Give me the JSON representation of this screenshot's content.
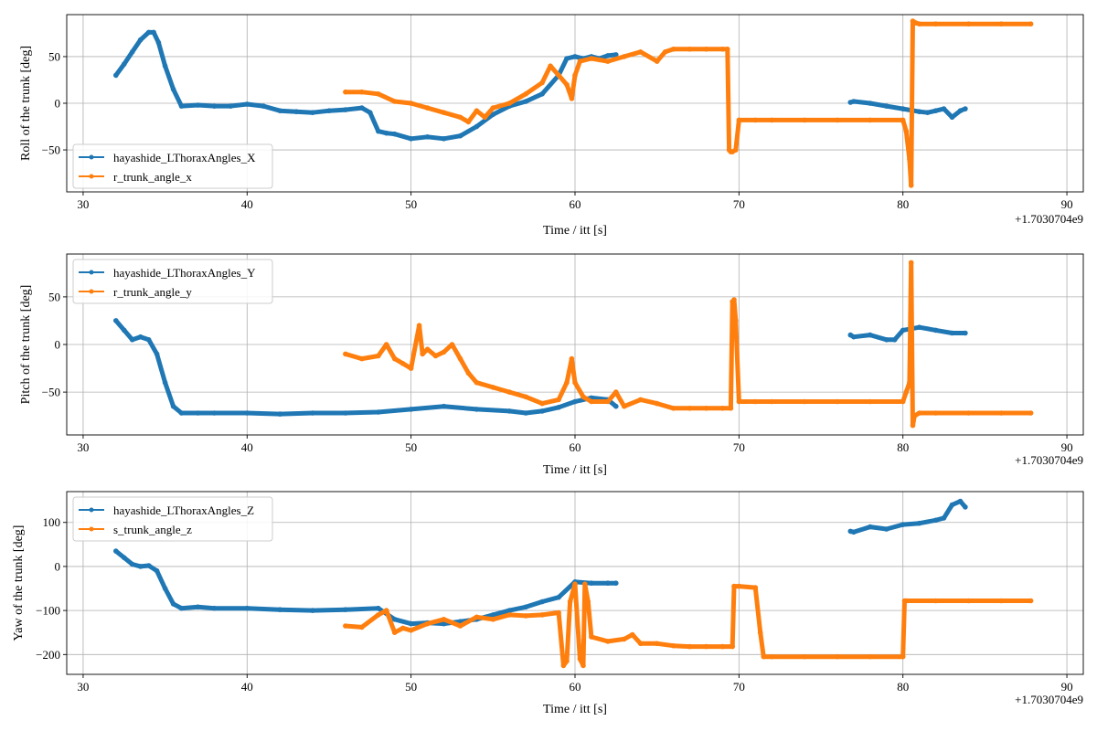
{
  "chart_data": [
    {
      "type": "line",
      "xlabel": "Time / itt [s]",
      "ylabel": "Roll of the trunk [deg]",
      "x_offset_label": "+1.7030704e9",
      "xlim": [
        29,
        91
      ],
      "ylim": [
        -95,
        95
      ],
      "xticks": [
        30,
        40,
        50,
        60,
        70,
        80,
        90
      ],
      "yticks": [
        -50,
        0,
        50
      ],
      "grid": true,
      "legend_position": "lower-left",
      "series": [
        {
          "name": "hayashide_LThoraxAngles_X",
          "color": "#1f77b4",
          "x": [
            32,
            32.5,
            33,
            33.5,
            34,
            34.3,
            34.6,
            35,
            35.5,
            36,
            37,
            38,
            39,
            40,
            41,
            42,
            43,
            44,
            45,
            46,
            47,
            47.5,
            48,
            48.5,
            49,
            50,
            51,
            52,
            53,
            54,
            55,
            56,
            57,
            58,
            59,
            59.5,
            60,
            60.5,
            61,
            61.5,
            62,
            62.5,
            null,
            76.8,
            77,
            78,
            79,
            80,
            81,
            81.5,
            82,
            82.5,
            83,
            83.5,
            83.8
          ],
          "y": [
            30,
            42,
            55,
            68,
            76,
            76,
            65,
            40,
            15,
            -3,
            -2,
            -3,
            -3,
            -1,
            -3,
            -8,
            -9,
            -10,
            -8,
            -7,
            -5,
            -10,
            -30,
            -32,
            -33,
            -38,
            -36,
            -38,
            -35,
            -25,
            -12,
            -3,
            2,
            10,
            30,
            48,
            50,
            48,
            50,
            48,
            51,
            52,
            null,
            1,
            2,
            0,
            -3,
            -6,
            -9,
            -10,
            -8,
            -6,
            -15,
            -8,
            -6
          ]
        },
        {
          "name": "r_trunk_angle_x",
          "color": "#ff7f0e",
          "x": [
            46,
            47,
            48,
            49,
            50,
            51,
            52,
            53,
            53.5,
            54,
            54.5,
            55,
            56,
            57,
            58,
            58.5,
            59,
            59.5,
            59.8,
            60,
            60.3,
            61,
            62,
            63,
            64,
            65,
            65.5,
            66,
            67,
            68,
            69,
            69.3,
            69.4,
            69.5,
            69.6,
            69.8,
            70,
            71,
            72,
            74,
            76,
            78,
            80,
            80.2,
            80.4,
            80.5,
            80.6,
            80.8,
            81,
            82,
            84,
            86,
            87.8
          ],
          "y": [
            12,
            12,
            10,
            2,
            0,
            -5,
            -10,
            -15,
            -20,
            -8,
            -15,
            -5,
            0,
            10,
            22,
            40,
            30,
            20,
            5,
            30,
            45,
            48,
            45,
            50,
            55,
            45,
            55,
            58,
            58,
            58,
            58,
            58,
            -50,
            -52,
            -52,
            -50,
            -18,
            -18,
            -18,
            -18,
            -18,
            -18,
            -18,
            -30,
            -60,
            -88,
            88,
            86,
            85,
            85,
            85,
            85,
            85
          ]
        }
      ]
    },
    {
      "type": "line",
      "xlabel": "Time / itt [s]",
      "ylabel": "Pitch of the trunk [deg]",
      "x_offset_label": "+1.7030704e9",
      "xlim": [
        29,
        91
      ],
      "ylim": [
        -95,
        95
      ],
      "xticks": [
        30,
        40,
        50,
        60,
        70,
        80,
        90
      ],
      "yticks": [
        -50,
        0,
        50
      ],
      "grid": true,
      "legend_position": "upper-left",
      "series": [
        {
          "name": "hayashide_LThoraxAngles_Y",
          "color": "#1f77b4",
          "x": [
            32,
            32.5,
            33,
            33.5,
            34,
            34.5,
            35,
            35.5,
            36,
            37,
            38,
            40,
            42,
            44,
            46,
            48,
            50,
            52,
            54,
            56,
            57,
            58,
            59,
            60,
            61,
            62,
            62.5,
            null,
            76.8,
            77,
            78,
            79,
            79.5,
            80,
            81,
            82,
            83,
            83.8
          ],
          "y": [
            25,
            15,
            5,
            8,
            5,
            -10,
            -40,
            -65,
            -72,
            -72,
            -72,
            -72,
            -73,
            -72,
            -72,
            -71,
            -68,
            -65,
            -68,
            -70,
            -72,
            -70,
            -66,
            -60,
            -56,
            -58,
            -65,
            null,
            10,
            8,
            10,
            5,
            5,
            15,
            18,
            15,
            12,
            12
          ]
        },
        {
          "name": "r_trunk_angle_y",
          "color": "#ff7f0e",
          "x": [
            46,
            47,
            48,
            48.5,
            49,
            49.5,
            50,
            50.5,
            50.7,
            51,
            51.5,
            52,
            52.5,
            53,
            53.5,
            54,
            55,
            56,
            57,
            58,
            59,
            59.5,
            59.8,
            60,
            60.5,
            61,
            62,
            62.5,
            63,
            64,
            65,
            66,
            67,
            68,
            69,
            69.5,
            69.6,
            69.7,
            69.8,
            70,
            71,
            72,
            74,
            76,
            78,
            80,
            80.2,
            80.4,
            80.5,
            80.6,
            80.7,
            81,
            82,
            84,
            86,
            87.8
          ],
          "y": [
            -10,
            -15,
            -12,
            0,
            -15,
            -20,
            -25,
            20,
            -10,
            -5,
            -12,
            -8,
            0,
            -15,
            -30,
            -40,
            -45,
            -50,
            -55,
            -62,
            -58,
            -40,
            -15,
            -40,
            -55,
            -60,
            -60,
            -50,
            -65,
            -58,
            -62,
            -67,
            -67,
            -67,
            -67,
            -67,
            45,
            47,
            25,
            -60,
            -60,
            -60,
            -60,
            -60,
            -60,
            -60,
            -50,
            -40,
            86,
            -85,
            -75,
            -72,
            -72,
            -72,
            -72,
            -72
          ]
        }
      ]
    },
    {
      "type": "line",
      "xlabel": "Time / itt [s]",
      "ylabel": "Yaw of the trunk [deg]",
      "x_offset_label": "+1.7030704e9",
      "xlim": [
        29,
        91
      ],
      "ylim": [
        -245,
        170
      ],
      "xticks": [
        30,
        40,
        50,
        60,
        70,
        80,
        90
      ],
      "yticks": [
        -200,
        -100,
        0,
        100
      ],
      "grid": true,
      "legend_position": "upper-left",
      "series": [
        {
          "name": "hayashide_LThoraxAngles_Z",
          "color": "#1f77b4",
          "x": [
            32,
            32.5,
            33,
            33.5,
            34,
            34.5,
            35,
            35.5,
            36,
            37,
            38,
            40,
            42,
            44,
            46,
            48,
            49,
            50,
            51,
            52,
            53,
            54,
            55,
            56,
            57,
            58,
            59,
            60,
            61,
            62,
            62.5,
            null,
            76.8,
            77,
            78,
            79,
            80,
            81,
            82,
            82.5,
            83,
            83.5,
            83.8
          ],
          "y": [
            35,
            20,
            5,
            0,
            2,
            -10,
            -50,
            -85,
            -95,
            -92,
            -95,
            -95,
            -98,
            -100,
            -98,
            -95,
            -120,
            -130,
            -128,
            -130,
            -125,
            -120,
            -110,
            -100,
            -92,
            -80,
            -70,
            -35,
            -38,
            -38,
            -38,
            null,
            80,
            78,
            90,
            85,
            95,
            98,
            105,
            110,
            140,
            148,
            135
          ]
        },
        {
          "name": "s_trunk_angle_z",
          "color": "#ff7f0e",
          "x": [
            46,
            47,
            48,
            48.5,
            49,
            49.5,
            50,
            51,
            52,
            53,
            54,
            55,
            56,
            57,
            58,
            59,
            59.3,
            59.5,
            59.7,
            60,
            60.3,
            60.5,
            60.6,
            60.8,
            61,
            62,
            63,
            63.5,
            64,
            65,
            66,
            67,
            68,
            69,
            69.6,
            69.7,
            70,
            71,
            71.3,
            71.5,
            72,
            74,
            76,
            78,
            80,
            80.1,
            80.2,
            82,
            84,
            86,
            87.8
          ],
          "y": [
            -135,
            -138,
            -110,
            -100,
            -150,
            -140,
            -145,
            -130,
            -120,
            -135,
            -115,
            -120,
            -110,
            -112,
            -110,
            -105,
            -225,
            -215,
            -80,
            -40,
            -210,
            -225,
            -40,
            -80,
            -160,
            -170,
            -165,
            -155,
            -175,
            -175,
            -180,
            -182,
            -182,
            -182,
            -182,
            -45,
            -45,
            -48,
            -150,
            -205,
            -205,
            -205,
            -205,
            -205,
            -205,
            -78,
            -78,
            -78,
            -78,
            -78,
            -78
          ]
        }
      ]
    }
  ]
}
